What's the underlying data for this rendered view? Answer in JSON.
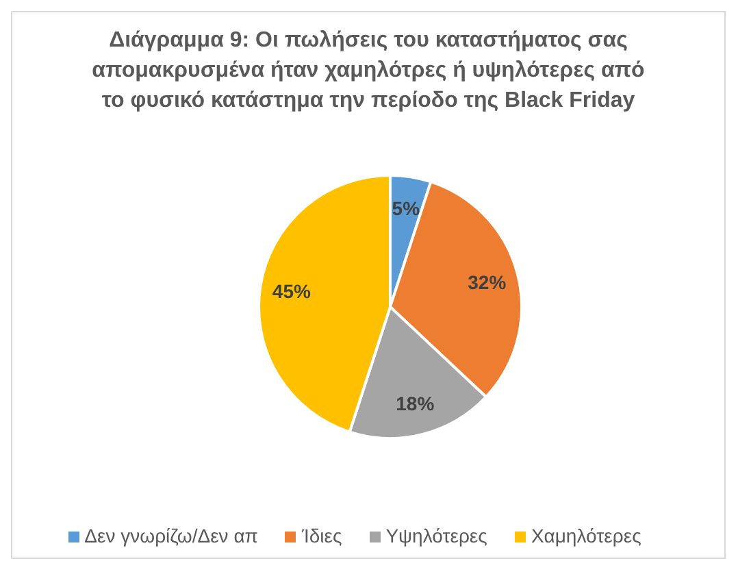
{
  "chart_data": {
    "type": "pie",
    "title": "Διάγραμμα 9: Οι πωλήσεις του καταστήματος σας απομακρυσμένα ήταν χαμηλότρες ή υψηλότερες από το φυσικό κατάστημα την περίοδο της Black Friday",
    "categories": [
      "Δεν γνωρίζω/Δεν απ",
      "Ίδιες",
      "Υψηλότερες",
      "Χαμηλότερες"
    ],
    "values": [
      5,
      32,
      18,
      45
    ],
    "colors": [
      "#5b9bd5",
      "#ed7d31",
      "#a5a5a5",
      "#ffc000"
    ],
    "value_labels": [
      "5%",
      "32%",
      "18%",
      "45%"
    ],
    "legend": "bottom"
  }
}
